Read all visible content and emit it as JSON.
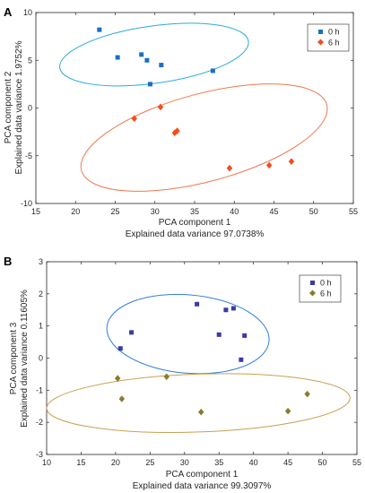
{
  "chart_data": [
    {
      "panel": "A",
      "type": "scatter",
      "xlabel": "PCA component 1",
      "xlabel2": "Explained data variance 97.0738%",
      "ylabel": "PCA component 2",
      "ylabel2": "Explained data variance 1.9752%",
      "xlim": [
        15,
        55
      ],
      "ylim": [
        -10,
        10
      ],
      "xticks": [
        15,
        20,
        25,
        30,
        35,
        40,
        45,
        50,
        55
      ],
      "yticks": [
        -10,
        -5,
        0,
        5,
        10
      ],
      "grid": false,
      "legend_position": "top-right",
      "series": [
        {
          "name": "0 h",
          "marker": "square",
          "color": "#1a6fc4",
          "points": [
            [
              23,
              8.2
            ],
            [
              25.3,
              5.3
            ],
            [
              28.3,
              5.6
            ],
            [
              29.0,
              5.0
            ],
            [
              30.8,
              4.5
            ],
            [
              29.4,
              2.5
            ],
            [
              37.3,
              3.9
            ]
          ]
        },
        {
          "name": "6 h",
          "marker": "diamond",
          "color": "#f04e1e",
          "points": [
            [
              27.4,
              -1.1
            ],
            [
              30.7,
              0.1
            ],
            [
              32.5,
              -2.6
            ],
            [
              32.8,
              -2.4
            ],
            [
              39.4,
              -6.3
            ],
            [
              44.4,
              -6.0
            ],
            [
              47.2,
              -5.6
            ]
          ]
        }
      ],
      "ellipses": [
        {
          "series": "0 h",
          "color": "#2aaadc",
          "cx": 29.9,
          "cy": 5.6,
          "rx": 12.0,
          "ry": 3.0,
          "angle_deg": -8.0
        },
        {
          "series": "6 h",
          "color": "#f07850",
          "cx": 36.2,
          "cy": -3.1,
          "rx": 16.0,
          "ry": 4.6,
          "angle_deg": -15.0
        }
      ]
    },
    {
      "panel": "B",
      "type": "scatter",
      "xlabel": "PCA component 1",
      "xlabel2": "Explained data variance 99.3097%",
      "ylabel": "PCA component 3",
      "ylabel2": "Explained data variance 0.11605%",
      "xlim": [
        10,
        55
      ],
      "ylim": [
        -3,
        3
      ],
      "xticks": [
        10,
        15,
        20,
        25,
        30,
        35,
        40,
        45,
        50,
        55
      ],
      "yticks": [
        -3,
        -2,
        -1,
        0,
        1,
        2,
        3
      ],
      "grid": false,
      "legend_position": "top-right",
      "series": [
        {
          "name": "0 h",
          "marker": "square",
          "color": "#3a3aa8",
          "points": [
            [
              20.7,
              0.3
            ],
            [
              22.3,
              0.8
            ],
            [
              31.8,
              1.68
            ],
            [
              35.0,
              0.73
            ],
            [
              36.0,
              1.5
            ],
            [
              37.1,
              1.55
            ],
            [
              38.2,
              -0.05
            ],
            [
              38.7,
              0.7
            ]
          ]
        },
        {
          "name": "6 h",
          "marker": "diamond",
          "color": "#8c7a2e",
          "points": [
            [
              20.3,
              -0.63
            ],
            [
              20.9,
              -1.27
            ],
            [
              27.4,
              -0.58
            ],
            [
              32.4,
              -1.68
            ],
            [
              45.0,
              -1.65
            ],
            [
              47.8,
              -1.12
            ]
          ]
        }
      ],
      "ellipses": [
        {
          "series": "0 h",
          "color": "#2f7fd8",
          "cx": 30.5,
          "cy": 0.75,
          "rx": 11.8,
          "ry": 1.22,
          "angle_deg": 5.0
        },
        {
          "series": "6 h",
          "color": "#c8a050",
          "cx": 32.0,
          "cy": -1.4,
          "rx": 22.0,
          "ry": 0.9,
          "angle_deg": -2.0
        }
      ]
    }
  ]
}
